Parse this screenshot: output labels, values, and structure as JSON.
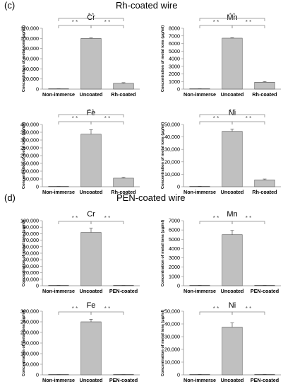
{
  "sections": [
    {
      "label": "(c)",
      "title": "Rh-coated wire"
    },
    {
      "label": "(d)",
      "title": "PEN-coated wire"
    }
  ],
  "chart_data": [
    {
      "type": "bar",
      "title": "Cr",
      "ylabel": "Concentration of metal ions (μg/ml)",
      "categories": [
        "Non-immerse",
        "Uncoated",
        "Rh-coated"
      ],
      "values": [
        300,
        100000,
        11500
      ],
      "errors": [
        200,
        1000,
        1200
      ],
      "ylim": [
        0,
        120000
      ],
      "yticks": [
        0,
        20000,
        40000,
        60000,
        80000,
        100000,
        120000
      ],
      "ytick_labels": [
        "0",
        "20,000",
        "40,000",
        "60,000",
        "80,000",
        "100,000",
        "120,000"
      ],
      "significance": [
        "* *",
        "* *",
        "* *"
      ]
    },
    {
      "type": "bar",
      "title": "Mn",
      "ylabel": "Concentration of metal ions (μg/ml)",
      "categories": [
        "Non-immerse",
        "Uncoated",
        "Rh-coated"
      ],
      "values": [
        20,
        6700,
        900
      ],
      "errors": [
        10,
        60,
        90
      ],
      "ylim": [
        0,
        8000
      ],
      "yticks": [
        0,
        1000,
        2000,
        3000,
        4000,
        5000,
        6000,
        7000,
        8000
      ],
      "ytick_labels": [
        "0",
        "1000",
        "2000",
        "3000",
        "4000",
        "5000",
        "6000",
        "7000",
        "8000"
      ],
      "significance": [
        "* *",
        "* *",
        "* *"
      ]
    },
    {
      "type": "bar",
      "title": "Fe",
      "ylabel": "Concentration of metal ions (μg/ml)",
      "categories": [
        "Non-immerse",
        "Uncoated",
        "Rh-coated"
      ],
      "values": [
        1000,
        338000,
        55000
      ],
      "errors": [
        500,
        28000,
        5000
      ],
      "ylim": [
        0,
        400000
      ],
      "yticks": [
        0,
        50000,
        100000,
        150000,
        200000,
        250000,
        300000,
        350000,
        400000
      ],
      "ytick_labels": [
        "0",
        "50,000",
        "100,000",
        "150,000",
        "200,000",
        "250,000",
        "300,000",
        "350,000",
        "400,000"
      ],
      "significance": [
        "* *",
        "* *",
        "* *"
      ]
    },
    {
      "type": "bar",
      "title": "Ni",
      "ylabel": "Concentration of metal ions (μg/ml)",
      "categories": [
        "Non-immerse",
        "Uncoated",
        "Rh-coated"
      ],
      "values": [
        300,
        44500,
        5500
      ],
      "errors": [
        100,
        1800,
        700
      ],
      "ylim": [
        0,
        50000
      ],
      "yticks": [
        0,
        10000,
        20000,
        30000,
        40000,
        50000
      ],
      "ytick_labels": [
        "0",
        "10,000",
        "20,000",
        "30,000",
        "40,000",
        "50,000"
      ],
      "significance": [
        "* *",
        "* *",
        "* *"
      ]
    },
    {
      "type": "bar",
      "title": "Cr",
      "ylabel": "Concentration of metal ions (μg/ml)",
      "categories": [
        "Non-immerse",
        "Uncoated",
        "PEN-coated"
      ],
      "values": [
        300,
        82000,
        200
      ],
      "errors": [
        100,
        6500,
        100
      ],
      "ylim": [
        0,
        100000
      ],
      "yticks": [
        0,
        10000,
        20000,
        30000,
        40000,
        50000,
        60000,
        70000,
        80000,
        90000,
        100000
      ],
      "ytick_labels": [
        "0",
        "10,000",
        "20,000",
        "30,000",
        "40,000",
        "50,000",
        "60,000",
        "70,000",
        "80,000",
        "90,000",
        "100,000"
      ],
      "significance": [
        "* *",
        "* *"
      ]
    },
    {
      "type": "bar",
      "title": "Mn",
      "ylabel": "Concentration of metal ions (μg/ml)",
      "categories": [
        "Non-immerse",
        "Uncoated",
        "PEN-coated"
      ],
      "values": [
        20,
        5500,
        20
      ],
      "errors": [
        10,
        450,
        10
      ],
      "ylim": [
        0,
        7000
      ],
      "yticks": [
        0,
        1000,
        2000,
        3000,
        4000,
        5000,
        6000,
        7000
      ],
      "ytick_labels": [
        "0",
        "1000",
        "2000",
        "3000",
        "4000",
        "5000",
        "6000",
        "7000"
      ],
      "significance": [
        "* *",
        "* *"
      ]
    },
    {
      "type": "bar",
      "title": "Fe",
      "ylabel": "Concentration of metal ions (μg/ml)",
      "categories": [
        "Non-immerse",
        "Uncoated",
        "PEN-coated"
      ],
      "values": [
        500,
        250000,
        500
      ],
      "errors": [
        200,
        12000,
        200
      ],
      "ylim": [
        0,
        300000
      ],
      "yticks": [
        0,
        50000,
        100000,
        150000,
        200000,
        250000,
        300000
      ],
      "ytick_labels": [
        "0",
        "50,000",
        "100,000",
        "150,000",
        "200,000",
        "250,000",
        "300,000"
      ],
      "significance": [
        "* *",
        "* *"
      ]
    },
    {
      "type": "bar",
      "title": "Ni",
      "ylabel": "Concentration of metal ions (μg/ml)",
      "categories": [
        "Non-immerse",
        "Uncoated",
        "PEN-coated"
      ],
      "values": [
        200,
        37500,
        200
      ],
      "errors": [
        100,
        3300,
        100
      ],
      "ylim": [
        0,
        50000
      ],
      "yticks": [
        0,
        10000,
        20000,
        30000,
        40000,
        50000
      ],
      "ytick_labels": [
        "0",
        "10,000",
        "20,000",
        "30,000",
        "40,000",
        "50,000"
      ],
      "significance": [
        "* *",
        "* *"
      ]
    }
  ],
  "colors": {
    "bar": "#c0c0c0",
    "bar_stroke": "#555555",
    "bracket": "#888888",
    "axis": "#888888"
  }
}
